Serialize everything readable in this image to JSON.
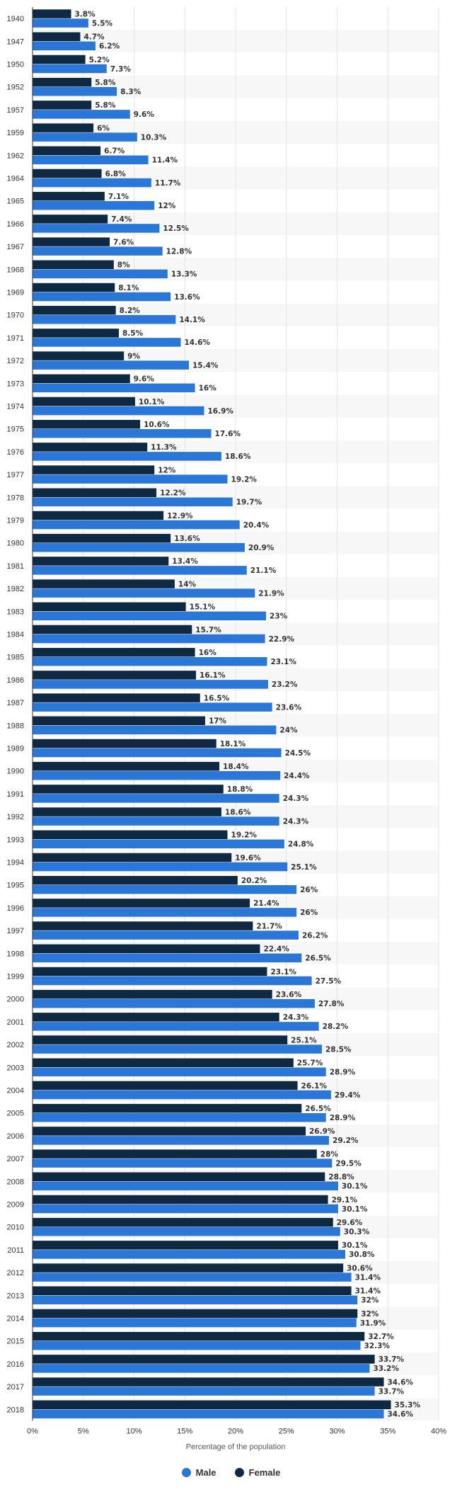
{
  "chart_data": {
    "type": "bar",
    "orientation": "horizontal",
    "title": "",
    "xlabel": "Percentage of the population",
    "ylabel": "",
    "xlim": [
      0,
      40
    ],
    "xticks": [
      "0%",
      "5%",
      "10%",
      "15%",
      "20%",
      "25%",
      "30%",
      "35%",
      "40%"
    ],
    "grid": true,
    "legend_position": "bottom-center",
    "value_suffix": "%",
    "categories": [
      "1940",
      "1947",
      "1950",
      "1952",
      "1957",
      "1959",
      "1962",
      "1964",
      "1965",
      "1966",
      "1967",
      "1968",
      "1969",
      "1970",
      "1971",
      "1972",
      "1973",
      "1974",
      "1975",
      "1976",
      "1977",
      "1978",
      "1979",
      "1980",
      "1981",
      "1982",
      "1983",
      "1984",
      "1985",
      "1986",
      "1987",
      "1988",
      "1989",
      "1990",
      "1991",
      "1992",
      "1993",
      "1994",
      "1995",
      "1996",
      "1997",
      "1998",
      "1999",
      "2000",
      "2001",
      "2002",
      "2003",
      "2004",
      "2005",
      "2006",
      "2007",
      "2008",
      "2009",
      "2010",
      "2011",
      "2012",
      "2013",
      "2014",
      "2015",
      "2016",
      "2017",
      "2018"
    ],
    "series": [
      {
        "name": "Female",
        "color": "#0f2942",
        "values": [
          3.8,
          4.7,
          5.2,
          5.8,
          5.8,
          6,
          6.7,
          6.8,
          7.1,
          7.4,
          7.6,
          8,
          8.1,
          8.2,
          8.5,
          9,
          9.6,
          10.1,
          10.6,
          11.3,
          12,
          12.2,
          12.9,
          13.6,
          13.4,
          14,
          15.1,
          15.7,
          16,
          16.1,
          16.5,
          17,
          18.1,
          18.4,
          18.8,
          18.6,
          19.2,
          19.6,
          20.2,
          21.4,
          21.7,
          22.4,
          23.1,
          23.6,
          24.3,
          25.1,
          25.7,
          26.1,
          26.5,
          26.9,
          28,
          28.8,
          29.1,
          29.6,
          30.1,
          30.6,
          31.4,
          32,
          32.7,
          33.7,
          34.6,
          35.3
        ]
      },
      {
        "name": "Male",
        "color": "#2b77d8",
        "values": [
          5.5,
          6.2,
          7.3,
          8.3,
          9.6,
          10.3,
          11.4,
          11.7,
          12,
          12.5,
          12.8,
          13.3,
          13.6,
          14.1,
          14.6,
          15.4,
          16,
          16.9,
          17.6,
          18.6,
          19.2,
          19.7,
          20.4,
          20.9,
          21.1,
          21.9,
          23,
          22.9,
          23.1,
          23.2,
          23.6,
          24,
          24.5,
          24.4,
          24.3,
          24.3,
          24.8,
          25.1,
          26,
          26,
          26.2,
          26.5,
          27.5,
          27.8,
          28.2,
          28.5,
          28.9,
          29.4,
          28.9,
          29.2,
          29.5,
          30.1,
          30.1,
          30.3,
          30.8,
          31.4,
          32,
          31.9,
          32.3,
          33.2,
          33.7,
          34.6
        ]
      }
    ]
  },
  "legend": {
    "items": [
      {
        "label": "Male",
        "color": "#2b77d8"
      },
      {
        "label": "Female",
        "color": "#0f2942"
      }
    ]
  }
}
